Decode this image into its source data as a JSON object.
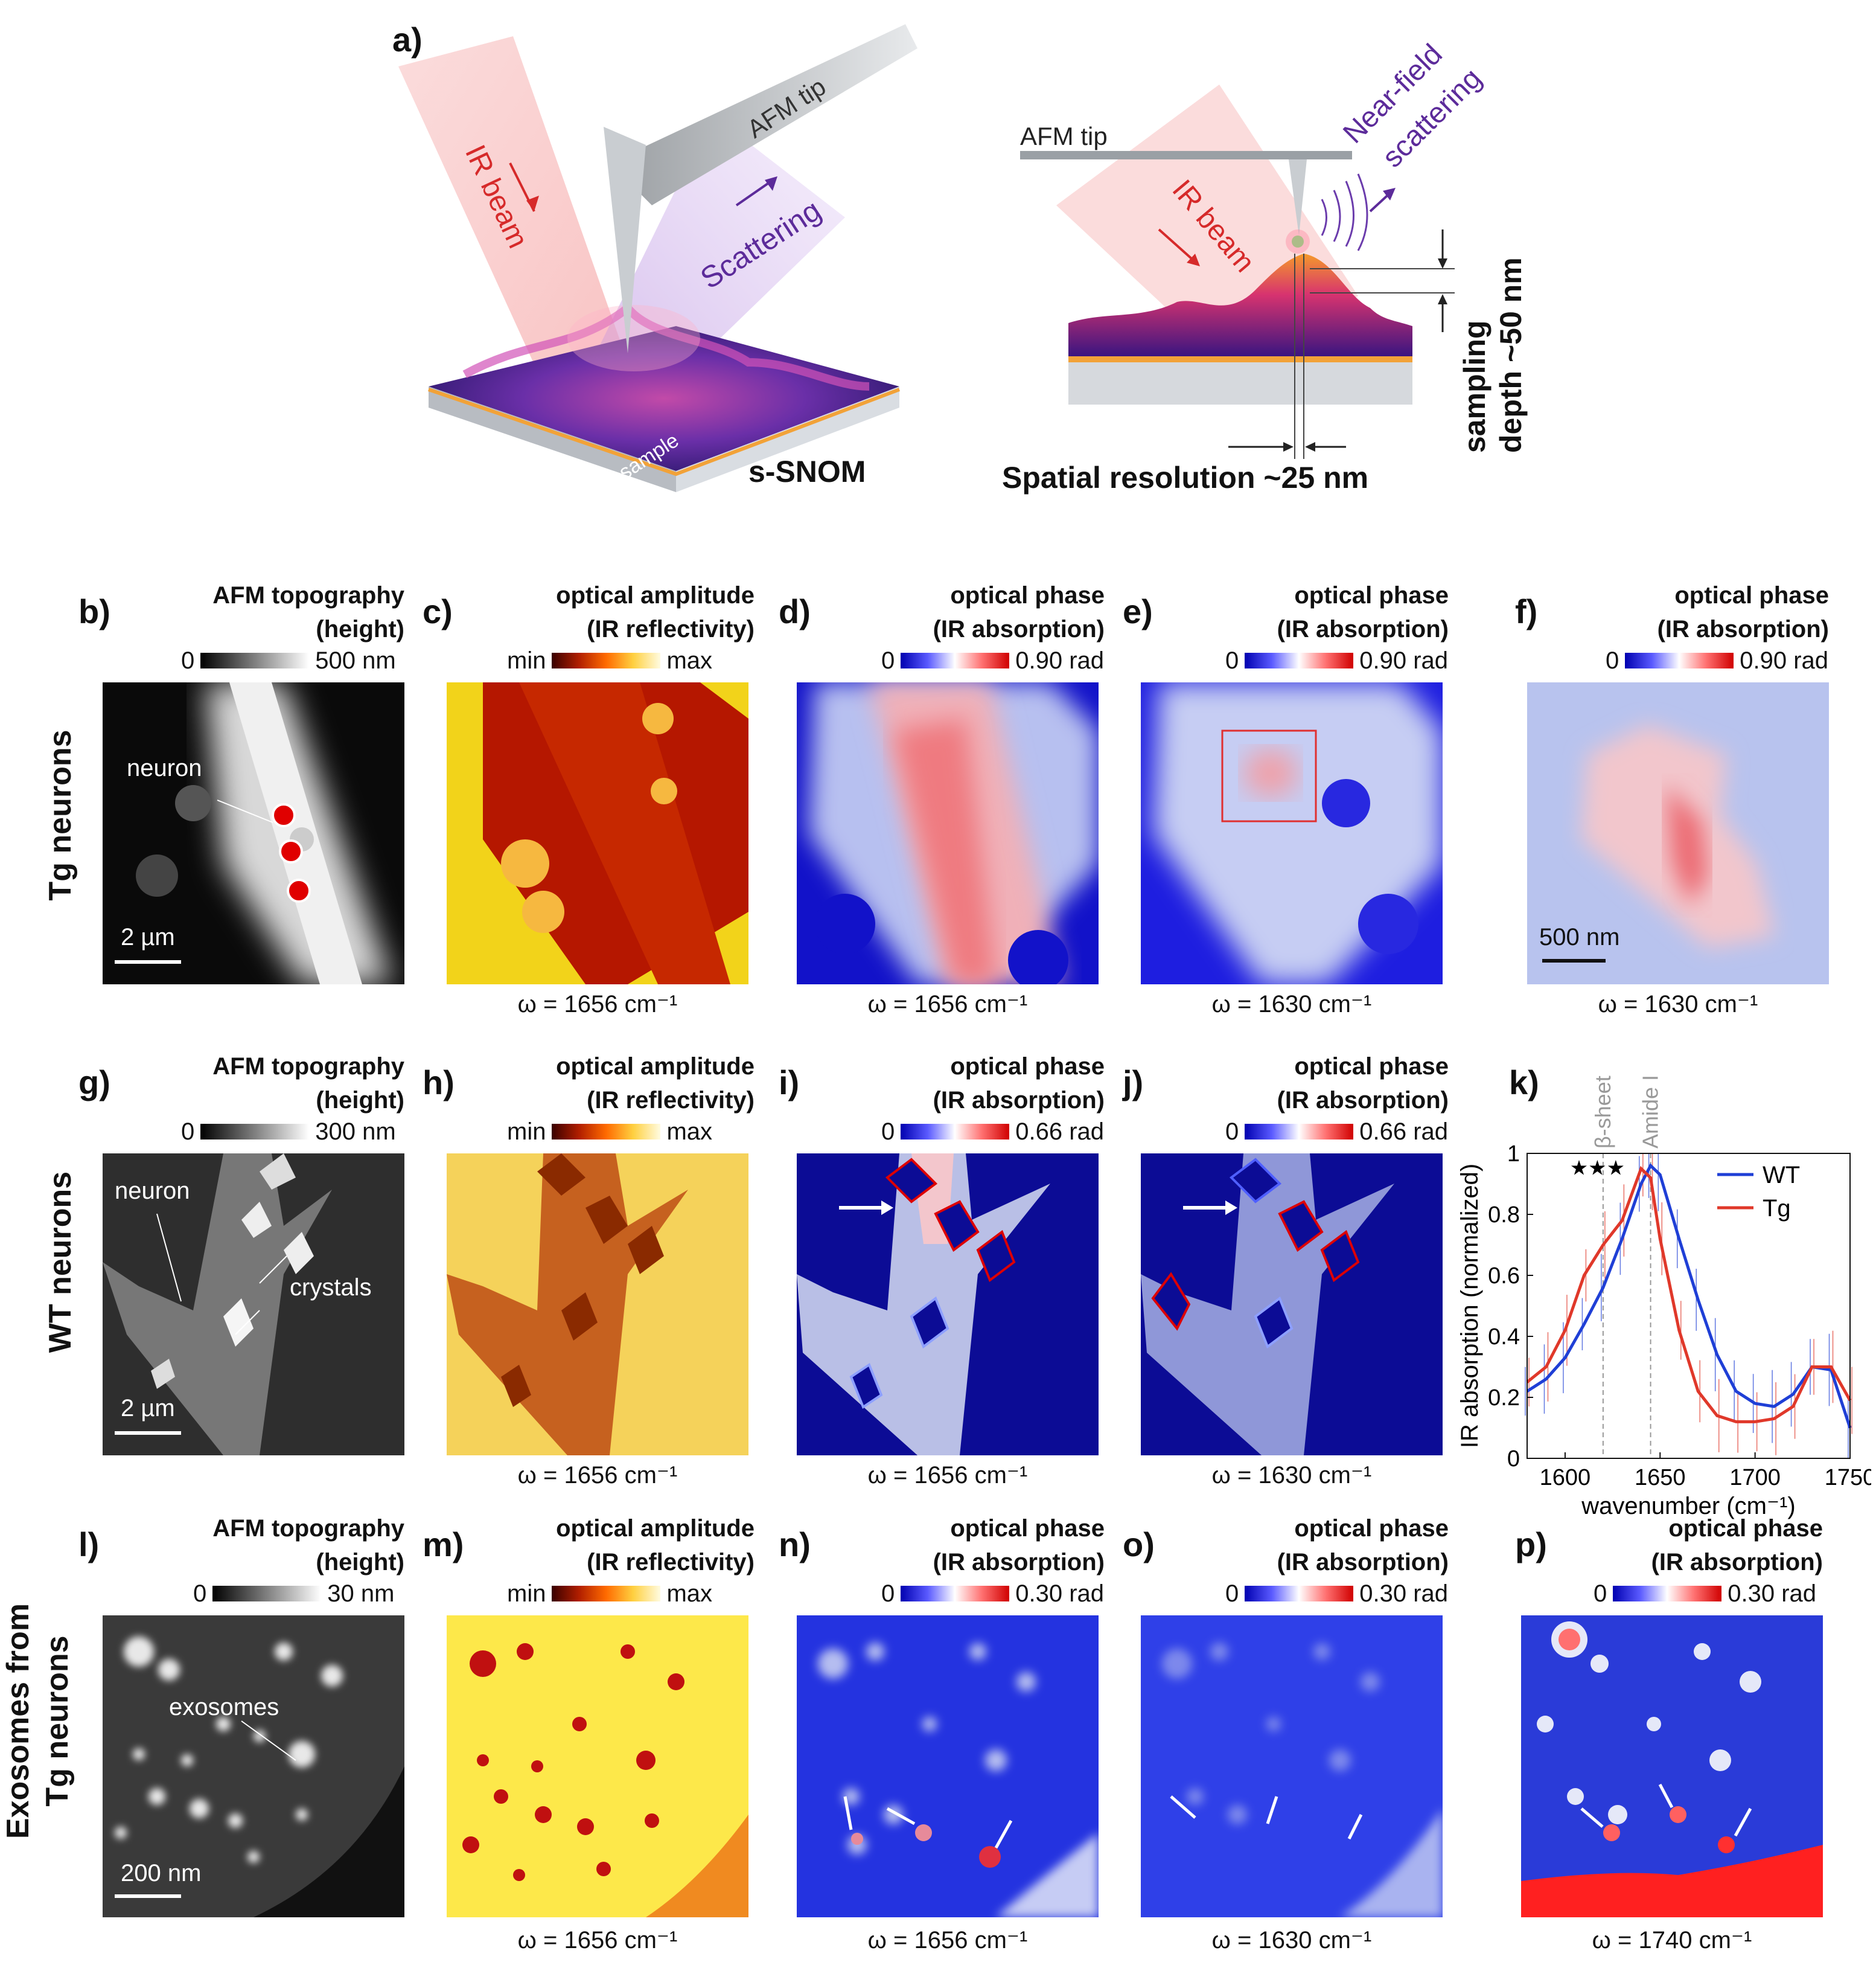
{
  "panel_a": {
    "label": "a)",
    "left": {
      "ir_beam": "IR beam",
      "afm_tip": "AFM tip",
      "scattering": "Scattering",
      "sample": "sample",
      "technique": "s-SNOM"
    },
    "right": {
      "afm_tip": "AFM tip",
      "ir_beam": "IR beam",
      "near_field": [
        "Near-field",
        "scattering"
      ],
      "depth": [
        "sampling",
        "depth ~50 nm"
      ],
      "resolution": "Spatial resolution ~25 nm"
    }
  },
  "rows": [
    {
      "label": [
        "Tg neurons"
      ]
    },
    {
      "label": [
        "WT neurons"
      ]
    },
    {
      "label": [
        "Exosomes from",
        "Tg neurons"
      ]
    }
  ],
  "panels": {
    "b": {
      "label": "b)",
      "title": [
        "AFM topography",
        "(height)"
      ],
      "cmin": "0",
      "cmax": "500 nm",
      "annotation": "neuron",
      "scale": "2 µm"
    },
    "c": {
      "label": "c)",
      "title": [
        "optical amplitude",
        "(IR reflectivity)"
      ],
      "cmin": "min",
      "cmax": "max",
      "freq": "ω = 1656 cm⁻¹"
    },
    "d": {
      "label": "d)",
      "title": [
        "optical phase",
        "(IR absorption)"
      ],
      "cmin": "0",
      "cmax": "0.90 rad",
      "freq": "ω = 1656 cm⁻¹"
    },
    "e": {
      "label": "e)",
      "title": [
        "optical phase",
        "(IR absorption)"
      ],
      "cmin": "0",
      "cmax": "0.90 rad",
      "freq": "ω = 1630 cm⁻¹"
    },
    "f": {
      "label": "f)",
      "title": [
        "optical phase",
        "(IR absorption)"
      ],
      "cmin": "0",
      "cmax": "0.90 rad",
      "freq": "ω = 1630 cm⁻¹",
      "scale": "500 nm"
    },
    "g": {
      "label": "g)",
      "title": [
        "AFM topography",
        "(height)"
      ],
      "cmin": "0",
      "cmax": "300 nm",
      "annotation": "neuron",
      "annotation2": "crystals",
      "scale": "2 µm"
    },
    "h": {
      "label": "h)",
      "title": [
        "optical amplitude",
        "(IR reflectivity)"
      ],
      "cmin": "min",
      "cmax": "max",
      "freq": "ω = 1656 cm⁻¹"
    },
    "i": {
      "label": "i)",
      "title": [
        "optical phase",
        "(IR absorption)"
      ],
      "cmin": "0",
      "cmax": "0.66 rad",
      "freq": "ω = 1656 cm⁻¹"
    },
    "j": {
      "label": "j)",
      "title": [
        "optical phase",
        "(IR absorption)"
      ],
      "cmin": "0",
      "cmax": "0.66 rad",
      "freq": "ω = 1630 cm⁻¹"
    },
    "k": {
      "label": "k)"
    },
    "l": {
      "label": "l)",
      "title": [
        "AFM topography",
        "(height)"
      ],
      "cmin": "0",
      "cmax": "30 nm",
      "annotation": "exosomes",
      "scale": "200 nm"
    },
    "m": {
      "label": "m)",
      "title": [
        "optical amplitude",
        "(IR reflectivity)"
      ],
      "cmin": "min",
      "cmax": "max",
      "freq": "ω = 1656 cm⁻¹"
    },
    "n": {
      "label": "n)",
      "title": [
        "optical phase",
        "(IR absorption)"
      ],
      "cmin": "0",
      "cmax": "0.30 rad",
      "freq": "ω = 1656 cm⁻¹"
    },
    "o": {
      "label": "o)",
      "title": [
        "optical phase",
        "(IR absorption)"
      ],
      "cmin": "0",
      "cmax": "0.30 rad",
      "freq": "ω = 1630 cm⁻¹"
    },
    "p": {
      "label": "p)",
      "title": [
        "optical phase",
        "(IR absorption)"
      ],
      "cmin": "0",
      "cmax": "0.30 rad",
      "freq": "ω = 1740 cm⁻¹"
    }
  },
  "colors": {
    "wt": "#1f3fd6",
    "tg": "#e0382a",
    "guide": "#999999"
  },
  "chart_data": {
    "type": "line",
    "xlabel": "wavenumber (cm⁻¹)",
    "ylabel": "IR absorption (normalized)",
    "xlim": [
      1580,
      1750
    ],
    "ylim": [
      0,
      1
    ],
    "xticks": [
      1600,
      1650,
      1700,
      1750
    ],
    "yticks": [
      0,
      0.2,
      0.4,
      0.6,
      0.8,
      1
    ],
    "ytick_labels": [
      "0",
      "0.2",
      "0.4",
      "0.6",
      "0.8",
      "1"
    ],
    "annotations": [
      {
        "text": "β-sheets",
        "x": 1620
      },
      {
        "text": "Amide I",
        "x": 1645
      }
    ],
    "significance": "★★★",
    "x": [
      1580,
      1590,
      1600,
      1610,
      1620,
      1630,
      1640,
      1645,
      1650,
      1660,
      1670,
      1680,
      1690,
      1700,
      1710,
      1720,
      1730,
      1740,
      1750
    ],
    "series": [
      {
        "name": "WT",
        "values": [
          0.22,
          0.26,
          0.33,
          0.44,
          0.56,
          0.72,
          0.9,
          0.96,
          0.93,
          0.72,
          0.52,
          0.34,
          0.22,
          0.18,
          0.17,
          0.21,
          0.3,
          0.29,
          0.1
        ]
      },
      {
        "name": "Tg",
        "values": [
          0.25,
          0.3,
          0.42,
          0.6,
          0.7,
          0.78,
          0.95,
          0.92,
          0.72,
          0.42,
          0.22,
          0.14,
          0.12,
          0.12,
          0.13,
          0.17,
          0.3,
          0.3,
          0.19
        ]
      }
    ],
    "error_bars": true,
    "legend": "top-right"
  }
}
